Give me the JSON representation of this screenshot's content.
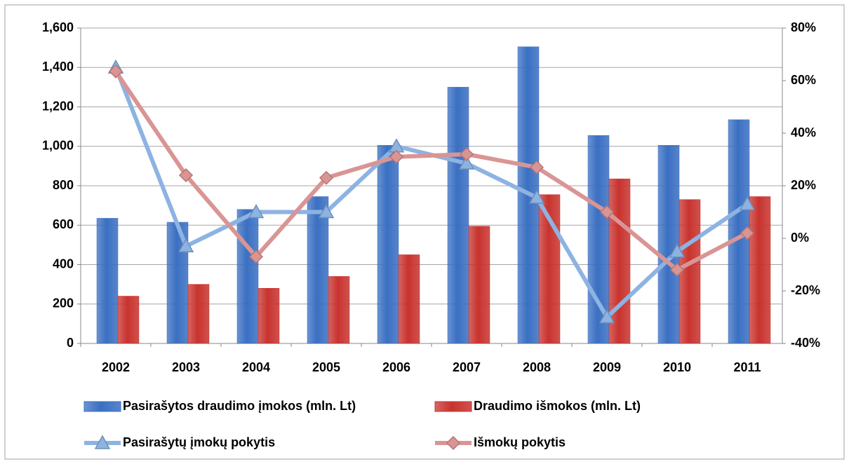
{
  "chart_data": {
    "type": "bar-line",
    "categories": [
      "2002",
      "2003",
      "2004",
      "2005",
      "2006",
      "2007",
      "2008",
      "2009",
      "2010",
      "2011"
    ],
    "series": [
      {
        "name": "Pasirašytos draudimo įmokos (mln. Lt)",
        "type": "bar",
        "color": "#3a6fc2",
        "values": [
          635,
          615,
          680,
          745,
          1005,
          1300,
          1505,
          1055,
          1005,
          1135
        ]
      },
      {
        "name": "Draudimo išmokos (mln. Lt)",
        "type": "bar",
        "color": "#c8332e",
        "values": [
          240,
          300,
          280,
          340,
          450,
          595,
          755,
          835,
          730,
          745
        ]
      },
      {
        "name": "Pasirašytų įmokų pokytis",
        "type": "line",
        "axis": "y2",
        "marker": "triangle",
        "color": "#8db3e2",
        "values": [
          65,
          -3,
          10,
          10,
          35,
          28.5,
          15.5,
          -30,
          -5,
          13
        ]
      },
      {
        "name": "Išmokų pokytis",
        "type": "line",
        "axis": "y2",
        "marker": "diamond",
        "color": "#d99594",
        "values": [
          63.5,
          24,
          -7,
          23,
          31,
          32,
          27,
          10,
          -12,
          2
        ]
      }
    ],
    "ylim": [
      0,
      1600
    ],
    "yticks": [
      0,
      {
        "value": 200,
        "label": "200"
      },
      {
        "value": 400,
        "label": "400"
      },
      {
        "value": 600,
        "label": "600"
      },
      {
        "value": 800,
        "label": "800"
      },
      {
        "value": 1000,
        "label": "1,000"
      },
      {
        "value": 1200,
        "label": "1,200"
      },
      {
        "value": 1400,
        "label": "1,400"
      },
      {
        "value": 1600,
        "label": "1,600"
      }
    ],
    "y2lim": [
      -40,
      80
    ],
    "y2ticks": [
      {
        "value": -40,
        "label": "-40%"
      },
      {
        "value": -20,
        "label": "-20%"
      },
      {
        "value": 0,
        "label": "0%"
      },
      {
        "value": 20,
        "label": "20%"
      },
      {
        "value": 40,
        "label": "40%"
      },
      {
        "value": 60,
        "label": "60%"
      },
      {
        "value": 80,
        "label": "80%"
      }
    ],
    "grid": true,
    "legend": "bottom"
  }
}
